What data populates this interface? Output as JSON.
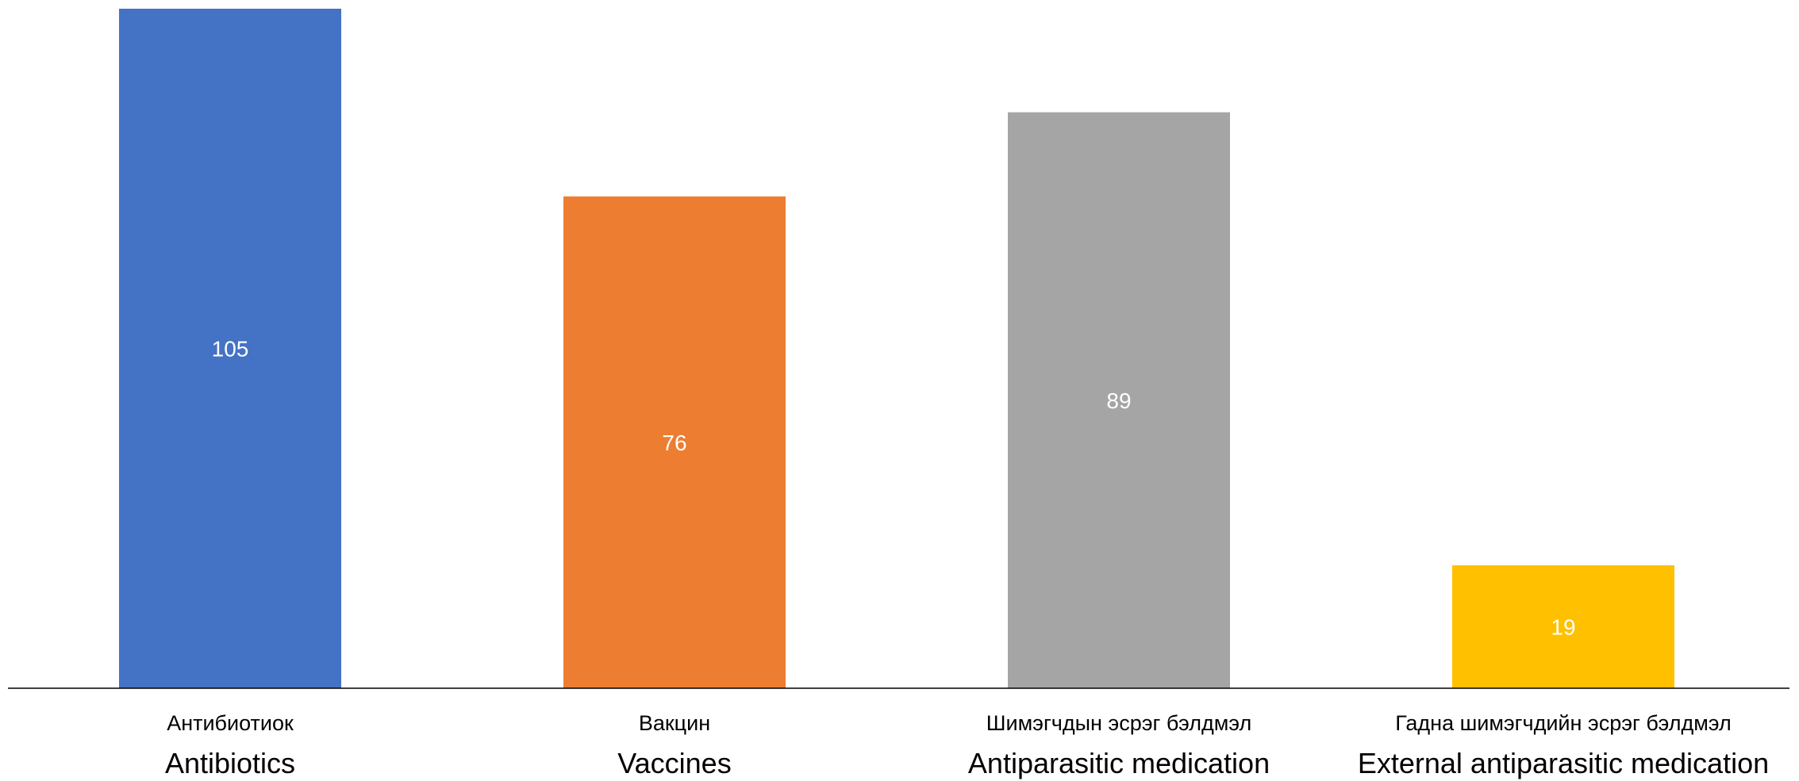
{
  "chart_data": {
    "type": "bar",
    "categories": [
      "Антибиотиок",
      "Вакцин",
      "Шимэгчдын эсрэг бэлдмэл",
      "Гадна шимэгчдийн эсрэг бэлдмэл"
    ],
    "categories_en": [
      "Antibiotics",
      "Vaccines",
      "Antiparasitic medication",
      "External antiparasitic medication"
    ],
    "values": [
      105,
      76,
      89,
      19
    ],
    "colors": [
      "#4472C4",
      "#ED7D31",
      "#A5A5A5",
      "#FFC000"
    ],
    "title": "",
    "xlabel": "",
    "ylabel": "",
    "ylim": [
      0,
      105
    ],
    "grid": false,
    "legend": "none",
    "data_labels": "center"
  }
}
